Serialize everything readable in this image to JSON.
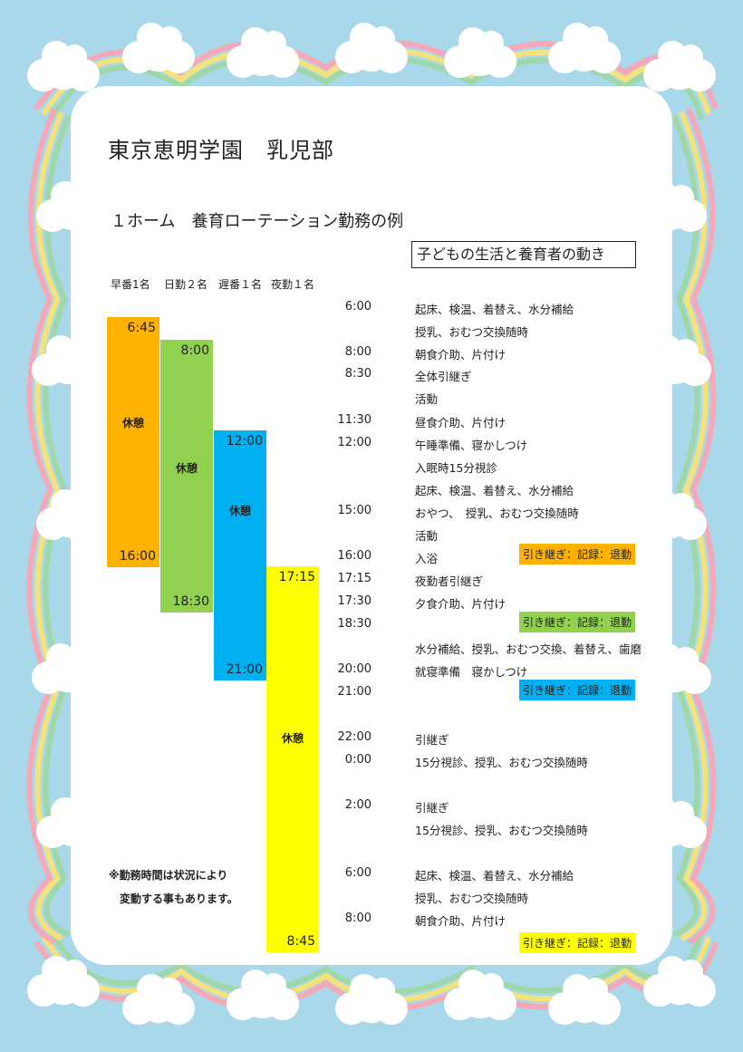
{
  "header": {
    "title": "東京恵明学園　乳児部",
    "subtitle": "１ホーム　養育ローテーション勤務の例",
    "box_title": "子どもの生活と養育者の動き"
  },
  "columns": [
    "早番1名",
    "日勤２名",
    "遅番１名",
    "夜勤１名"
  ],
  "shifts": [
    {
      "name": "早番",
      "start": "6:45",
      "end": "16:00",
      "rest": "休憩",
      "color": "#ffb300"
    },
    {
      "name": "日勤",
      "start": "8:00",
      "end": "18:30",
      "rest": "休憩",
      "color": "#92d050"
    },
    {
      "name": "遅番",
      "start": "12:00",
      "end": "21:00",
      "rest": "休憩",
      "color": "#00b0f0"
    },
    {
      "name": "夜勤",
      "start": "17:15",
      "end": "8:45",
      "rest": "休憩",
      "color": "#ffff00"
    }
  ],
  "schedule": [
    {
      "time": "6:00",
      "activity": "起床、検温、着替え、水分補給"
    },
    {
      "time": "",
      "activity": "授乳、おむつ交換随時"
    },
    {
      "time": "8:00",
      "activity": "朝食介助、片付け"
    },
    {
      "time": "8:30",
      "activity": "全体引継ぎ"
    },
    {
      "time": "",
      "activity": "活動"
    },
    {
      "time": "11:30",
      "activity": "昼食介助、片付け"
    },
    {
      "time": "12:00",
      "activity": "午睡準備、寝かしつけ"
    },
    {
      "time": "",
      "activity": "入眠時15分視診"
    },
    {
      "time": "",
      "activity": "起床、検温、着替え、水分補給"
    },
    {
      "time": "15:00",
      "activity": "おやつ、　授乳、おむつ交換随時"
    },
    {
      "time": "",
      "activity": "活動"
    },
    {
      "time": "16:00",
      "activity": "入浴"
    },
    {
      "time": "17:15",
      "activity": "夜勤者引継ぎ"
    },
    {
      "time": "17:30",
      "activity": "夕食介助、片付け"
    },
    {
      "time": "18:30",
      "activity": ""
    },
    {
      "time": "",
      "activity": "水分補給、授乳、おむつ交換、着替え、歯磨"
    },
    {
      "time": "20:00",
      "activity": "就寝準備　寝かしつけ"
    },
    {
      "time": "21:00",
      "activity": ""
    },
    {
      "time": "22:00",
      "activity": "引継ぎ"
    },
    {
      "time": "0:00",
      "activity": "15分視診、授乳、おむつ交換随時"
    },
    {
      "time": "2:00",
      "activity": "引継ぎ"
    },
    {
      "time": "",
      "activity": "15分視診、授乳、おむつ交換随時"
    },
    {
      "time": "6:00",
      "activity": "起床、検温、着替え、水分補給"
    },
    {
      "time": "",
      "activity": "授乳、おむつ交換随時"
    },
    {
      "time": "8:00",
      "activity": "朝食介助、片付け"
    }
  ],
  "handoff_badges": [
    {
      "label": "引き継ぎ：記録：退勤",
      "color": "#ffb300"
    },
    {
      "label": "引き継ぎ：記録：退勤",
      "color": "#92d050"
    },
    {
      "label": "引き継ぎ：記録：退勤",
      "color": "#00b0f0"
    },
    {
      "label": "引き継ぎ：記録：退勤",
      "color": "#ffff00"
    }
  ],
  "note": {
    "line1": "※勤務時間は状況により",
    "line2": "変動する事もあります。"
  }
}
